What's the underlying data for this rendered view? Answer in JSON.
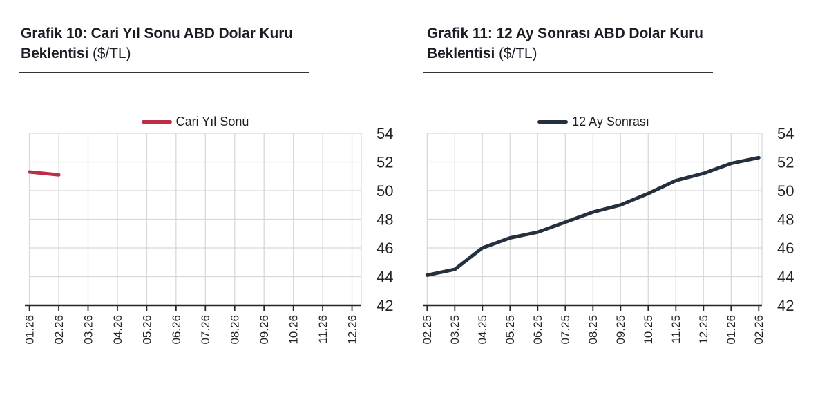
{
  "styles": {
    "background": "#ffffff",
    "grid_color": "#d8d8d8",
    "axis_color": "#262626",
    "tick_label_color": "#242424",
    "title_color": "#1c1c26",
    "rule_color": "#33333d",
    "red_line": "#bd2d47",
    "navy_line": "#25303f"
  },
  "chart_data": [
    {
      "id": "grafik-10",
      "type": "line",
      "title": "Grafik 10: Cari Yıl Sonu ABD Dolar Kuru Beklentisi ($/TL)",
      "title_line1": "Grafik 10: Cari Yıl Sonu ABD Dolar Kuru",
      "title_line2_bold": "Beklentisi",
      "title_line2_suffix": " ($/TL)",
      "legend_position": "top",
      "grid": true,
      "xlabel": "",
      "ylabel": "",
      "categories": [
        "01.26",
        "02.26",
        "03.26",
        "04.26",
        "05.26",
        "06.26",
        "07.26",
        "08.26",
        "09.26",
        "10.26",
        "11.26",
        "12.26"
      ],
      "series": [
        {
          "name": "Cari Yıl Sonu",
          "color": "#bd2d47",
          "values": [
            51.3,
            51.1,
            null,
            null,
            null,
            null,
            null,
            null,
            null,
            null,
            null,
            null
          ]
        }
      ],
      "ylim": [
        42,
        54
      ],
      "yticks": [
        42,
        44,
        46,
        48,
        50,
        52,
        54
      ]
    },
    {
      "id": "grafik-11",
      "type": "line",
      "title": "Grafik 11: 12 Ay Sonrası ABD Dolar Kuru Beklentisi ($/TL)",
      "title_line1": "Grafik 11: 12 Ay Sonrası ABD Dolar Kuru",
      "title_line2_bold": "Beklentisi",
      "title_line2_suffix": " ($/TL)",
      "legend_position": "top",
      "grid": true,
      "xlabel": "",
      "ylabel": "",
      "categories": [
        "02.25",
        "03.25",
        "04.25",
        "05.25",
        "06.25",
        "07.25",
        "08.25",
        "09.25",
        "10.25",
        "11.25",
        "12.25",
        "01.26",
        "02.26"
      ],
      "series": [
        {
          "name": "12 Ay Sonrası",
          "color": "#25303f",
          "values": [
            44.1,
            44.5,
            46.0,
            46.7,
            47.1,
            47.8,
            48.5,
            49.0,
            49.8,
            50.7,
            51.2,
            51.9,
            52.3
          ]
        }
      ],
      "ylim": [
        42,
        54
      ],
      "yticks": [
        42,
        44,
        46,
        48,
        50,
        52,
        54
      ]
    }
  ]
}
